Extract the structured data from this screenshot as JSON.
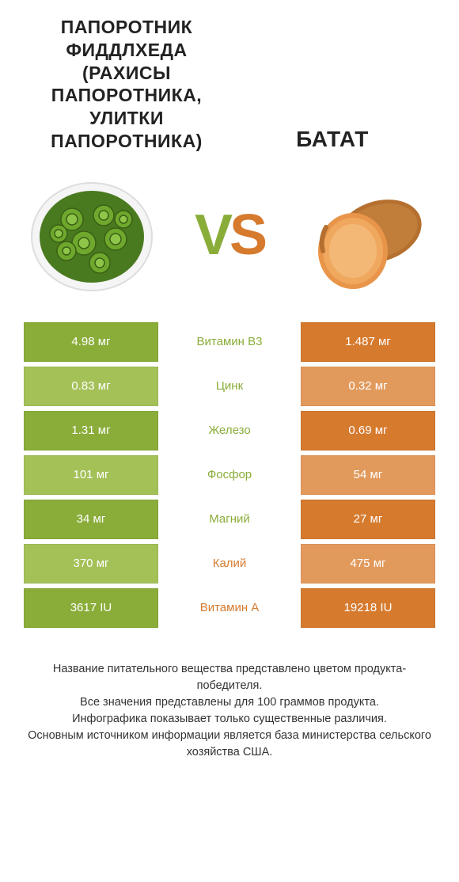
{
  "colors": {
    "left_dark": "#8aad3a",
    "left_light": "#a4c158",
    "right_dark": "#d67a2e",
    "right_light": "#e29a5c",
    "nutrient_green": "#8aad3a",
    "nutrient_orange": "#d67a2e",
    "background": "#ffffff",
    "text": "#333333"
  },
  "title_left": "ПАПОРОТНИК ФИДДЛХЕДА (РАХИСЫ ПАПОРОТНИКА, УЛИТКИ ПАПОРОТНИКА)",
  "title_right": "БАТАТ",
  "vs_v": "V",
  "vs_s": "S",
  "rows": [
    {
      "left": "4.98 мг",
      "name": "Витамин B3",
      "right": "1.487 мг",
      "winner": "left"
    },
    {
      "left": "0.83 мг",
      "name": "Цинк",
      "right": "0.32 мг",
      "winner": "left"
    },
    {
      "left": "1.31 мг",
      "name": "Железо",
      "right": "0.69 мг",
      "winner": "left"
    },
    {
      "left": "101 мг",
      "name": "Фосфор",
      "right": "54 мг",
      "winner": "left"
    },
    {
      "left": "34 мг",
      "name": "Магний",
      "right": "27 мг",
      "winner": "left"
    },
    {
      "left": "370 мг",
      "name": "Калий",
      "right": "475 мг",
      "winner": "right"
    },
    {
      "left": "3617 IU",
      "name": "Витамин A",
      "right": "19218 IU",
      "winner": "right"
    }
  ],
  "footer_lines": [
    "Название питательного вещества представлено цветом продукта-победителя.",
    "Все значения представлены для 100 граммов продукта.",
    "Инфографика показывает только существенные различия.",
    "Основным источником информации является база министерства сельского хозяйства США."
  ]
}
